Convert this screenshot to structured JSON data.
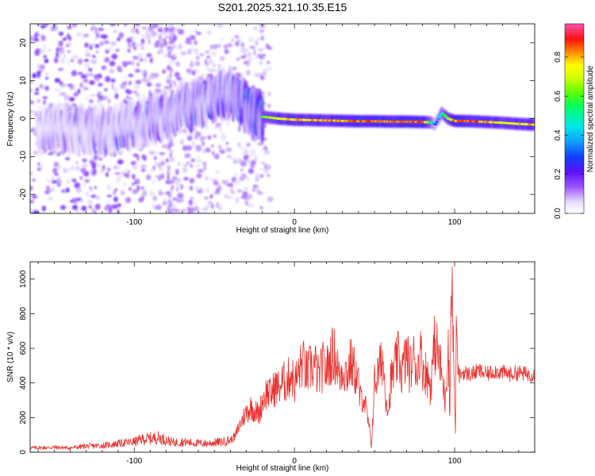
{
  "chart_data": [
    {
      "type": "heatmap",
      "title": "S201.2025.321.10.35.E15",
      "xlabel": "Height of straight line (km)",
      "ylabel": "Frequency (Hz)",
      "xlim": [
        -165,
        150
      ],
      "ylim": [
        -25,
        25
      ],
      "xticks": [
        -100,
        0,
        100
      ],
      "xtick_labels": [
        "-100",
        "0",
        "100"
      ],
      "yticks": [
        -20,
        -10,
        0,
        10,
        20
      ],
      "ytick_labels": [
        "-20",
        "-10",
        "0",
        "10",
        "20"
      ],
      "colorbar": {
        "label": "Normalized spectral amplitude",
        "range": [
          0.0,
          0.97
        ],
        "ticks": [
          0.0,
          0.2,
          0.4,
          0.6,
          0.8
        ],
        "tick_labels": [
          "0.0",
          "0.2",
          "0.4",
          "0.6",
          "0.8"
        ],
        "colormap": "rainbow (white-lavender-purple-blue-cyan-green-yellow-red-pink)"
      },
      "ridge_x": [
        -165,
        -150,
        -140,
        -130,
        -120,
        -110,
        -100,
        -90,
        -80,
        -70,
        -60,
        -50,
        -40,
        -35,
        -30,
        -25,
        -20,
        -10,
        0,
        10,
        20,
        30,
        40,
        50,
        60,
        70,
        80,
        85,
        88,
        92,
        96,
        100,
        110,
        120,
        130,
        140,
        150
      ],
      "ridge_freq": [
        -3,
        -3,
        -2.5,
        -3,
        -3.5,
        -3,
        -1.5,
        0,
        1,
        2.5,
        3.5,
        5.5,
        6.5,
        5.5,
        3,
        1.5,
        0.5,
        0,
        -0.3,
        -0.4,
        -0.5,
        -0.6,
        -0.7,
        -0.7,
        -0.8,
        -0.8,
        -0.9,
        -1,
        -1.5,
        1.5,
        0,
        -0.6,
        -0.7,
        -0.9,
        -1.1,
        -1.4,
        -1.6
      ],
      "ridge_amplitude": [
        0.15,
        0.25,
        0.25,
        0.25,
        0.3,
        0.3,
        0.3,
        0.35,
        0.35,
        0.4,
        0.4,
        0.45,
        0.45,
        0.5,
        0.5,
        0.55,
        0.65,
        0.75,
        0.85,
        0.85,
        0.85,
        0.85,
        0.9,
        0.9,
        0.9,
        0.9,
        0.9,
        0.6,
        0.3,
        0.5,
        0.7,
        0.9,
        0.9,
        0.85,
        0.75,
        0.8,
        0.85
      ]
    },
    {
      "type": "line",
      "xlabel": "Height of straight line (km)",
      "ylabel": "SNR (10 * v/v)",
      "xlim": [
        -165,
        150
      ],
      "ylim": [
        0,
        1100
      ],
      "xticks": [
        -100,
        0,
        100
      ],
      "xtick_labels": [
        "-100",
        "0",
        "100"
      ],
      "yticks": [
        0,
        200,
        400,
        600,
        800,
        1000
      ],
      "ytick_labels": [
        "0",
        "200",
        "400",
        "600",
        "800",
        "1000"
      ],
      "line_color": "#e8302d",
      "series": [
        {
          "name": "SNR",
          "x": [
            -165,
            -150,
            -140,
            -130,
            -120,
            -110,
            -100,
            -95,
            -90,
            -85,
            -80,
            -75,
            -70,
            -65,
            -60,
            -55,
            -50,
            -45,
            -40,
            -37,
            -35,
            -32,
            -30,
            -27,
            -25,
            -22,
            -20,
            -17,
            -15,
            -12,
            -10,
            -7,
            -5,
            -2,
            0,
            3,
            5,
            8,
            10,
            13,
            15,
            18,
            20,
            23,
            25,
            27,
            28,
            30,
            33,
            35,
            38,
            40,
            41,
            43,
            45,
            47,
            48,
            50,
            53,
            55,
            57,
            59,
            60,
            63,
            65,
            67,
            70,
            72,
            75,
            77,
            78,
            80,
            83,
            85,
            87,
            88,
            90,
            92,
            94,
            96,
            97,
            98,
            99,
            100,
            100.5,
            101,
            102,
            103,
            105,
            110,
            115,
            120,
            125,
            130,
            135,
            140,
            145,
            150
          ],
          "values": [
            25,
            28,
            25,
            35,
            38,
            50,
            60,
            75,
            80,
            85,
            70,
            55,
            60,
            55,
            52,
            50,
            55,
            60,
            70,
            90,
            140,
            200,
            230,
            260,
            240,
            220,
            300,
            350,
            330,
            380,
            370,
            410,
            400,
            460,
            390,
            470,
            520,
            450,
            490,
            500,
            430,
            500,
            470,
            560,
            560,
            500,
            420,
            490,
            450,
            520,
            460,
            400,
            300,
            330,
            230,
            120,
            30,
            400,
            470,
            550,
            330,
            250,
            400,
            500,
            550,
            460,
            560,
            480,
            550,
            450,
            600,
            500,
            440,
            380,
            580,
            640,
            550,
            450,
            300,
            640,
            200,
            1100,
            700,
            300,
            100,
            760,
            480,
            440,
            460,
            450,
            470,
            450,
            470,
            460,
            450,
            460,
            450,
            450
          ]
        }
      ]
    }
  ]
}
